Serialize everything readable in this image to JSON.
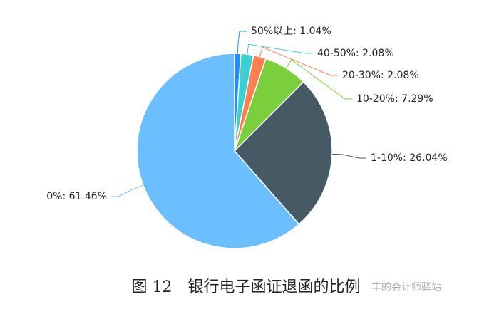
{
  "chart_data": {
    "type": "pie",
    "categories": [
      "50%以上",
      "40-50%",
      "20-30%",
      "10-20%",
      "1-10%",
      "0%"
    ],
    "values": [
      1.04,
      2.08,
      2.08,
      7.29,
      26.04,
      61.46
    ],
    "value_labels": [
      "1.04%",
      "2.08%",
      "2.08%",
      "7.29%",
      "26.04%",
      "61.46%"
    ],
    "label_separator": ": ",
    "colors": [
      "#1f8fff",
      "#3ccfcf",
      "#ff7f50",
      "#7ccf3c",
      "#455a64",
      "#6bbfff"
    ],
    "start_angle": "top",
    "direction": "clockwise"
  },
  "caption": "图 12　银行电子函证退函的比例",
  "watermark": "丰的会计师驿站"
}
